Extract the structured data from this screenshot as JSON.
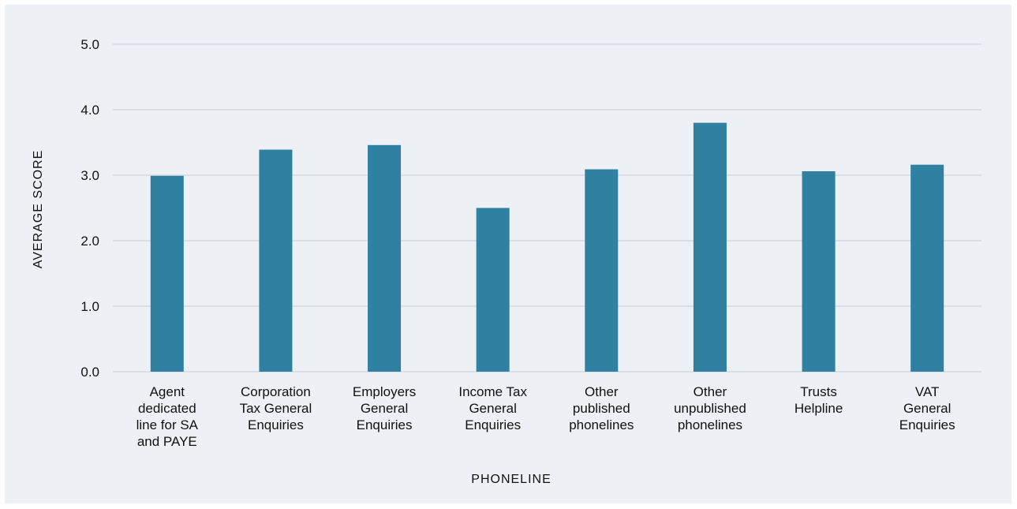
{
  "chart_data": {
    "type": "bar",
    "xlabel": "PHONELINE",
    "ylabel": "AVERAGE SCORE",
    "ylim": [
      0,
      5
    ],
    "yticks": [
      "0.0",
      "1.0",
      "2.0",
      "3.0",
      "4.0",
      "5.0"
    ],
    "grid": true,
    "categories": [
      [
        "Agent",
        "dedicated",
        "line for SA",
        "and PAYE"
      ],
      [
        "Corporation",
        "Tax General",
        "Enquiries"
      ],
      [
        "Employers",
        "General",
        "Enquiries"
      ],
      [
        "Income Tax",
        "General",
        "Enquiries"
      ],
      [
        "Other",
        "published",
        "phonelines"
      ],
      [
        "Other",
        "unpublished",
        "phonelines"
      ],
      [
        "Trusts",
        "Helpline"
      ],
      [
        "VAT",
        "General",
        "Enquiries"
      ]
    ],
    "values": [
      2.99,
      3.39,
      3.46,
      2.5,
      3.09,
      3.8,
      3.06,
      3.16
    ],
    "colors": {
      "bar": "#3080a2",
      "grid": "#c9ced6",
      "background": "#edf0f4"
    }
  }
}
